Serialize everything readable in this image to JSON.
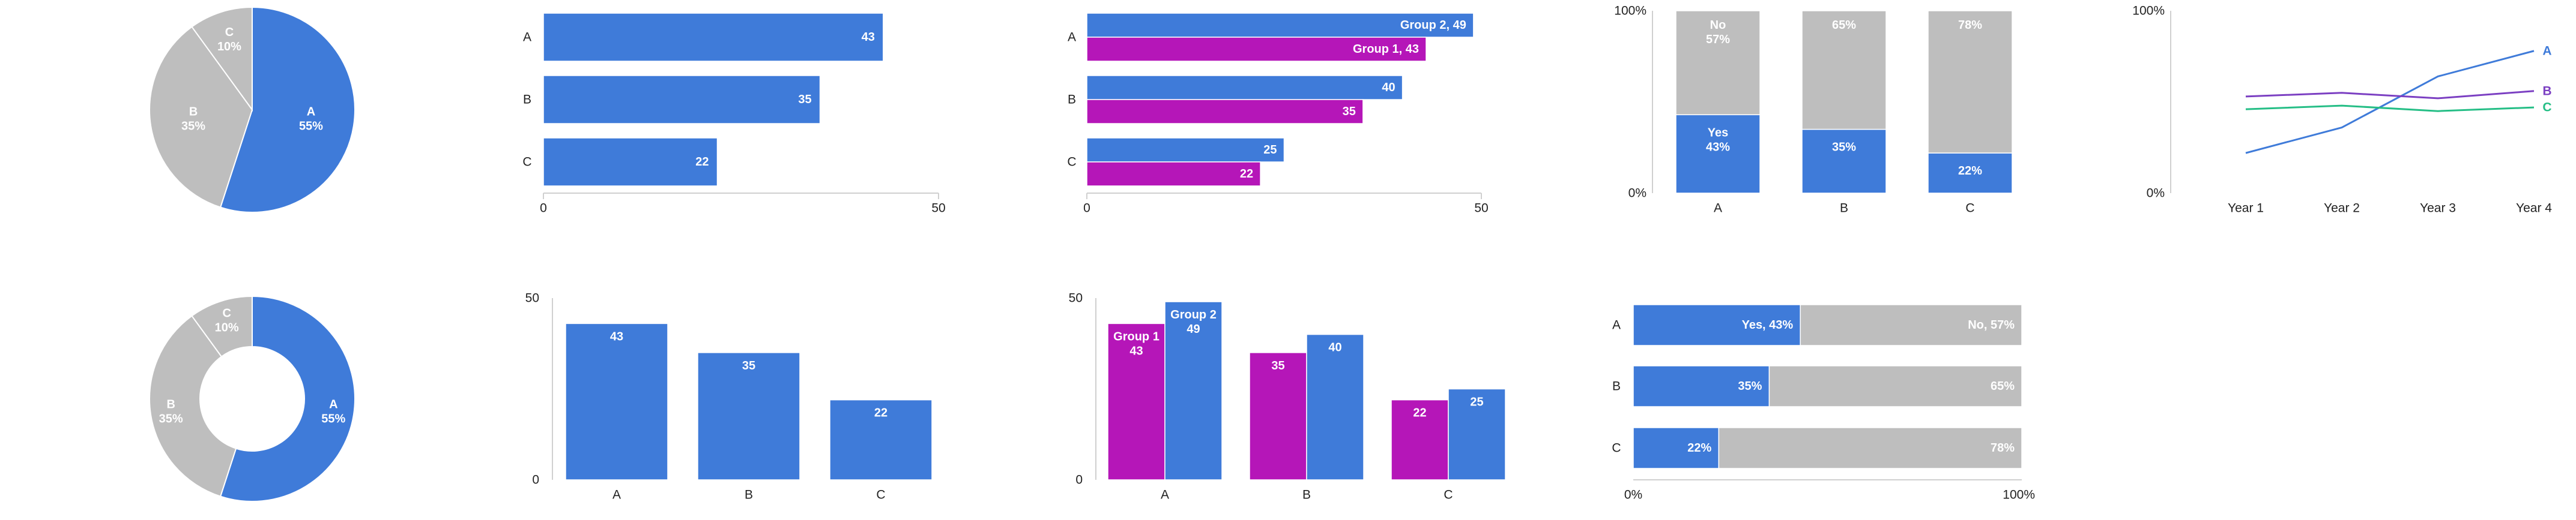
{
  "colors": {
    "blue": "#3F7BD9",
    "magenta": "#B516B8",
    "gray": "#BEBEBE",
    "green": "#25BE86",
    "purple": "#7B3FC2",
    "axis": "#D0D0D0"
  },
  "chart_data": [
    {
      "type": "pie",
      "categories": [
        "A",
        "B",
        "C"
      ],
      "values": [
        55,
        35,
        10
      ],
      "labels": [
        "A",
        "B",
        "C"
      ],
      "percent_labels": [
        "55%",
        "35%",
        "10%"
      ]
    },
    {
      "type": "bar",
      "orientation": "horizontal",
      "categories": [
        "A",
        "B",
        "C"
      ],
      "values": [
        43,
        35,
        22
      ],
      "value_labels": [
        "43",
        "35",
        "22"
      ],
      "xlim": [
        0,
        50
      ],
      "xticks": [
        "0",
        "50"
      ]
    },
    {
      "type": "bar",
      "orientation": "horizontal",
      "categories": [
        "A",
        "B",
        "C"
      ],
      "series": [
        {
          "name": "Group 2",
          "values": [
            49,
            40,
            25
          ],
          "value_labels": [
            "Group 2, 49",
            "40",
            "25"
          ]
        },
        {
          "name": "Group 1",
          "values": [
            43,
            35,
            22
          ],
          "value_labels": [
            "Group 1, 43",
            "35",
            "22"
          ]
        }
      ],
      "xlim": [
        0,
        50
      ],
      "xticks": [
        "0",
        "50"
      ]
    },
    {
      "type": "bar",
      "orientation": "vertical",
      "stacked": true,
      "categories": [
        "A",
        "B",
        "C"
      ],
      "series": [
        {
          "name": "Yes",
          "values": [
            43,
            35,
            22
          ],
          "value_labels": [
            "Yes\n43%",
            "35%",
            "22%"
          ]
        },
        {
          "name": "No",
          "values": [
            57,
            65,
            78
          ],
          "value_labels": [
            "No\n57%",
            "65%",
            "78%"
          ]
        }
      ],
      "ylim": [
        0,
        100
      ],
      "yticks": [
        "0%",
        "100%"
      ]
    },
    {
      "type": "line",
      "x": [
        "Year 1",
        "Year 2",
        "Year 3",
        "Year 4"
      ],
      "series": [
        {
          "name": "A",
          "values": [
            22,
            36,
            64,
            78
          ]
        },
        {
          "name": "B",
          "values": [
            53,
            55,
            52,
            56
          ]
        },
        {
          "name": "C",
          "values": [
            46,
            48,
            45,
            47
          ]
        }
      ],
      "ylim": [
        0,
        100
      ],
      "yticks": [
        "0%",
        "100%"
      ]
    },
    {
      "type": "pie",
      "donut": true,
      "categories": [
        "A",
        "B",
        "C"
      ],
      "values": [
        55,
        35,
        10
      ],
      "labels": [
        "A",
        "B",
        "C"
      ],
      "percent_labels": [
        "55%",
        "35%",
        "10%"
      ]
    },
    {
      "type": "bar",
      "orientation": "vertical",
      "categories": [
        "A",
        "B",
        "C"
      ],
      "values": [
        43,
        35,
        22
      ],
      "value_labels": [
        "43",
        "35",
        "22"
      ],
      "ylim": [
        0,
        50
      ],
      "yticks": [
        "0",
        "50"
      ]
    },
    {
      "type": "bar",
      "orientation": "vertical",
      "categories": [
        "A",
        "B",
        "C"
      ],
      "series": [
        {
          "name": "Group 1",
          "values": [
            43,
            35,
            22
          ],
          "value_labels": [
            "Group 1\n43",
            "35",
            "22"
          ]
        },
        {
          "name": "Group 2",
          "values": [
            49,
            40,
            25
          ],
          "value_labels": [
            "Group 2\n49",
            "40",
            "25"
          ]
        }
      ],
      "ylim": [
        0,
        50
      ],
      "yticks": [
        "0",
        "50"
      ]
    },
    {
      "type": "bar",
      "orientation": "horizontal",
      "stacked": true,
      "categories": [
        "A",
        "B",
        "C"
      ],
      "series": [
        {
          "name": "Yes",
          "values": [
            43,
            35,
            22
          ],
          "value_labels": [
            "Yes, 43%",
            "35%",
            "22%"
          ]
        },
        {
          "name": "No",
          "values": [
            57,
            65,
            78
          ],
          "value_labels": [
            "No, 57%",
            "65%",
            "78%"
          ]
        }
      ],
      "xlim": [
        0,
        100
      ],
      "xticks": [
        "0%",
        "100%"
      ]
    }
  ]
}
